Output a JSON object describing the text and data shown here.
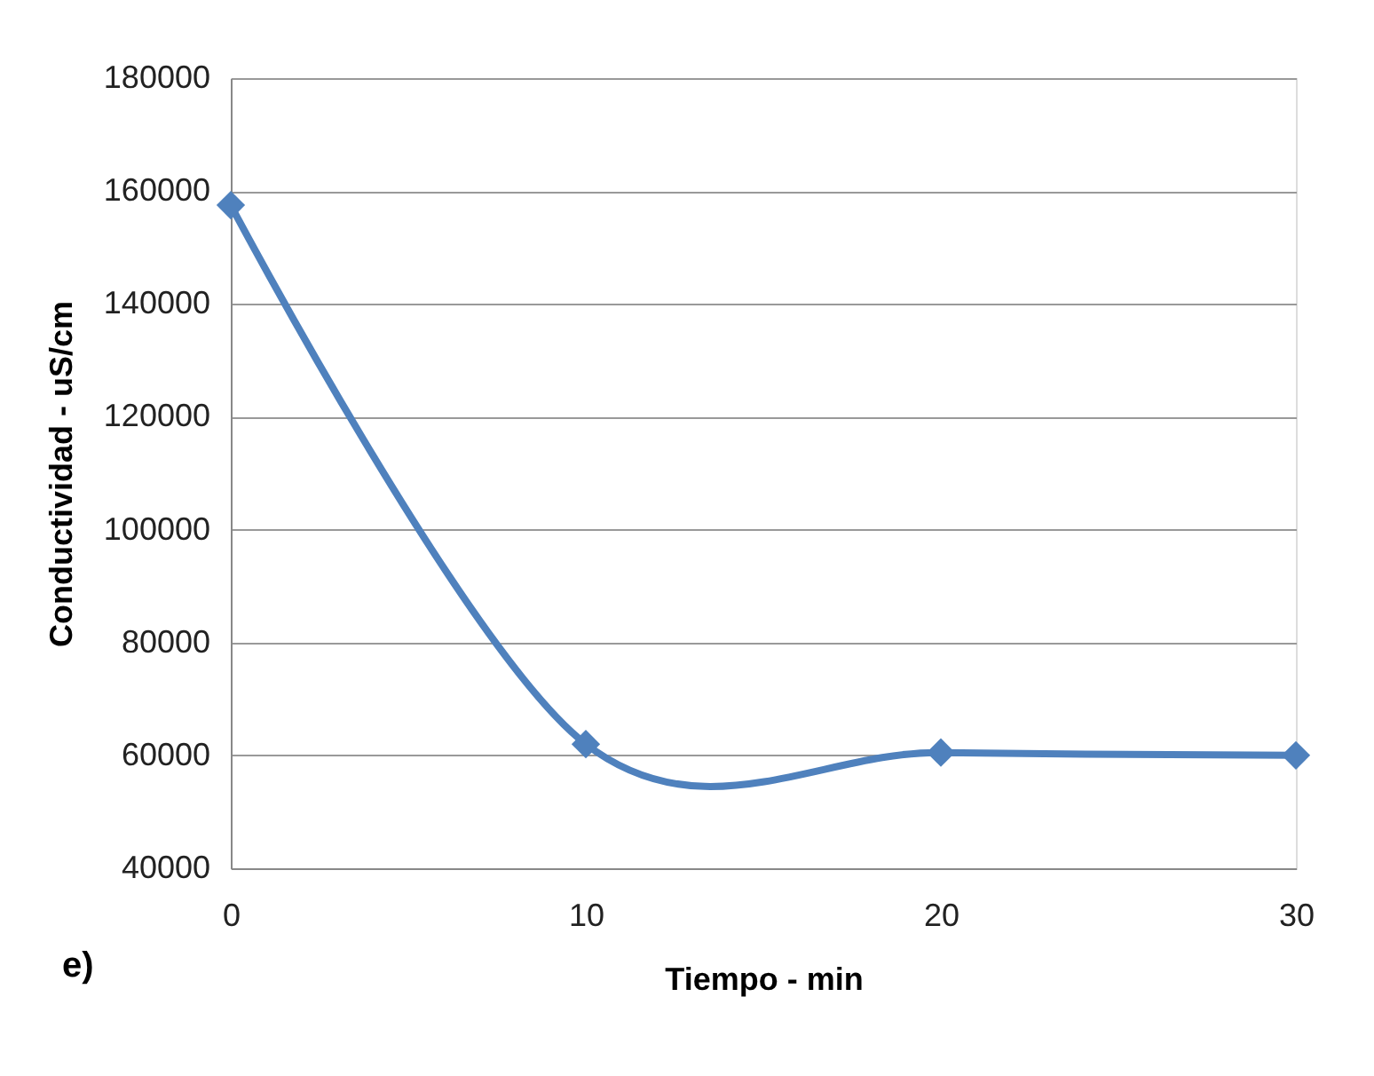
{
  "chart_data": {
    "type": "line",
    "xlabel": "Tiempo - min",
    "ylabel": "Conductividad  - uS/cm",
    "x": [
      0,
      10,
      20,
      30
    ],
    "series": [
      {
        "color": "#4f81bd",
        "values": [
          157500,
          62000,
          60500,
          60000
        ]
      }
    ],
    "xlim": [
      0,
      30
    ],
    "xticks": [
      0,
      10,
      20,
      30
    ],
    "ylim": [
      40000,
      180000
    ],
    "yticks": [
      40000,
      60000,
      80000,
      100000,
      120000,
      140000,
      160000,
      180000
    ],
    "grid": "y",
    "marker": "diamond",
    "line_style": "solid",
    "legend": false,
    "annotations": [
      "e)"
    ]
  }
}
